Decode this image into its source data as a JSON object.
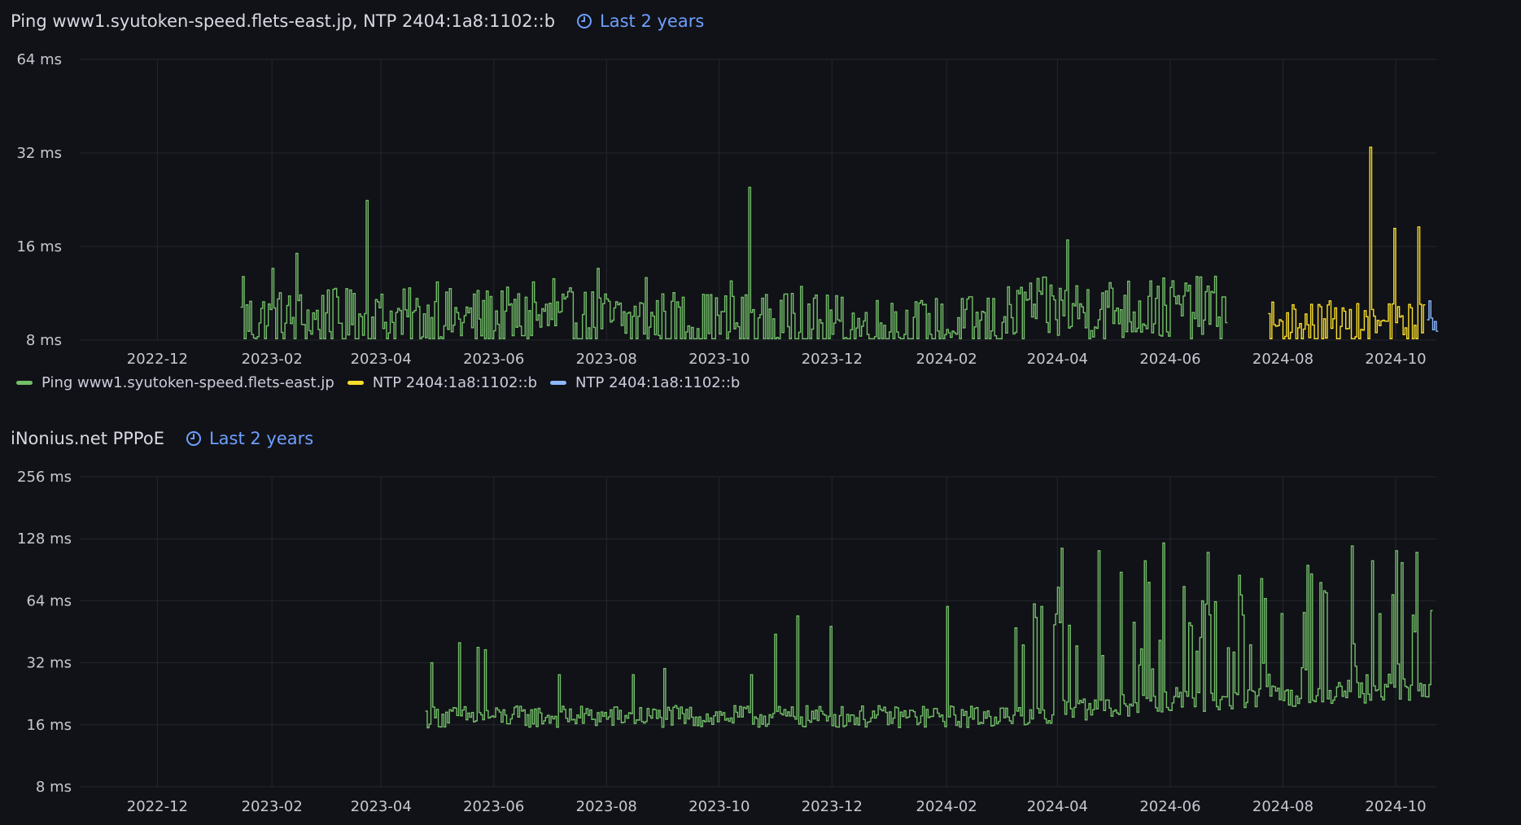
{
  "panels": [
    {
      "title": "Ping www1.syutoken-speed.flets-east.jp, NTP 2404:1a8:1102::b",
      "time_range": "Last 2 years"
    },
    {
      "title": "iNonius.net PPPoE",
      "time_range": "Last 2 years"
    }
  ],
  "icons": {
    "time_range": "clock-icon"
  },
  "colors": {
    "ping": "#73bf69",
    "ntp_yellow": "#fade2a",
    "ntp_blue": "#8ab8ff",
    "grid": "#24262e",
    "background": "#111217"
  },
  "chart_data": [
    {
      "type": "line",
      "x_range": [
        "2022-10-20",
        "2024-10-23"
      ],
      "x_ticks": [
        "2022-12",
        "2023-02",
        "2023-04",
        "2023-06",
        "2023-08",
        "2023-10",
        "2023-12",
        "2024-02",
        "2024-04",
        "2024-06",
        "2024-08",
        "2024-10"
      ],
      "y_scale": "log2",
      "y_range": [
        8,
        64
      ],
      "y_ticks": [
        8,
        16,
        32,
        64
      ],
      "y_tick_labels": [
        "8 ms",
        "16 ms",
        "32 ms",
        "64 ms"
      ],
      "grid": true,
      "legend_placement": "bottom-left",
      "series": [
        {
          "name": "Ping www1.syutoken-speed.flets-east.jp",
          "color": "#73bf69",
          "start": "2023-01-15",
          "end": "2024-07-01",
          "base": [
            [
              0,
              9.2
            ],
            [
              0.3,
              9.3
            ],
            [
              0.5,
              9.0
            ],
            [
              0.6,
              8.8
            ],
            [
              0.7,
              8.6
            ],
            [
              0.76,
              8.9
            ],
            [
              0.8,
              10.0
            ],
            [
              1.0,
              10.1
            ]
          ],
          "noise": 0.35,
          "spikes": [
            [
              "2023-01-16",
              12.8
            ],
            [
              "2023-02-01",
              13.6
            ],
            [
              "2023-02-14",
              15.2
            ],
            [
              "2023-03-03",
              11.6
            ],
            [
              "2023-03-17",
              11.3
            ],
            [
              "2023-03-24",
              22.5
            ],
            [
              "2023-03-29",
              10.8
            ],
            [
              "2023-05-01",
              12.3
            ],
            [
              "2023-06-22",
              12.3
            ],
            [
              "2023-07-03",
              12.6
            ],
            [
              "2023-07-27",
              13.6
            ],
            [
              "2023-08-22",
              12.7
            ],
            [
              "2023-10-07",
              12.4
            ],
            [
              "2023-10-17",
              24.8
            ],
            [
              "2023-11-09",
              11.3
            ],
            [
              "2023-11-14",
              11.9
            ],
            [
              "2024-01-02",
              10.5
            ],
            [
              "2024-03-17",
              12.2
            ],
            [
              "2024-04-06",
              16.8
            ],
            [
              "2024-05-21",
              12.4
            ]
          ]
        },
        {
          "name": "NTP 2404:1a8:1102::b",
          "color": "#fade2a",
          "start": "2024-07-24",
          "end": "2024-10-16",
          "base": [
            [
              0,
              9.0
            ],
            [
              0.5,
              8.8
            ],
            [
              1.0,
              9.0
            ]
          ],
          "noise": 0.25,
          "spikes": [
            [
              "2024-08-26",
              10.7
            ],
            [
              "2024-09-17",
              33.4
            ],
            [
              "2024-09-30",
              18.3
            ],
            [
              "2024-10-13",
              18.5
            ]
          ]
        },
        {
          "name": "NTP 2404:1a8:1102::b",
          "color": "#8ab8ff",
          "start": "2024-10-18",
          "end": "2024-10-23",
          "base": [
            [
              0,
              9.0
            ],
            [
              1.0,
              9.0
            ]
          ],
          "noise": 0.1,
          "spikes": [
            [
              "2024-10-19",
              10.7
            ]
          ]
        }
      ]
    },
    {
      "type": "line",
      "x_range": [
        "2022-10-20",
        "2024-10-23"
      ],
      "x_ticks": [
        "2022-12",
        "2023-02",
        "2023-04",
        "2023-06",
        "2023-08",
        "2023-10",
        "2023-12",
        "2024-02",
        "2024-04",
        "2024-06",
        "2024-08",
        "2024-10"
      ],
      "y_scale": "log2",
      "y_range": [
        8,
        256
      ],
      "y_ticks": [
        8,
        16,
        32,
        64,
        128,
        256
      ],
      "y_tick_labels": [
        "8 ms",
        "16 ms",
        "32 ms",
        "64 ms",
        "128 ms",
        "256 ms"
      ],
      "grid": true,
      "series": [
        {
          "color": "#73bf69",
          "start": "2023-04-25",
          "end": "2024-10-20",
          "base": [
            [
              0,
              17.5
            ],
            [
              0.55,
              17.5
            ],
            [
              0.6,
              18.0
            ],
            [
              0.7,
              20.0
            ],
            [
              1.0,
              24.0
            ]
          ],
          "noise": 0.18,
          "spikes": [
            [
              "2023-04-28",
              32
            ],
            [
              "2023-05-13",
              40
            ],
            [
              "2023-05-23",
              38
            ],
            [
              "2023-05-27",
              37
            ],
            [
              "2023-07-06",
              28
            ],
            [
              "2023-08-15",
              28
            ],
            [
              "2023-09-01",
              30
            ],
            [
              "2023-10-18",
              28
            ],
            [
              "2023-10-31",
              44
            ],
            [
              "2023-11-12",
              54
            ],
            [
              "2023-11-30",
              48
            ],
            [
              "2024-02-01",
              60
            ],
            [
              "2024-03-23",
              60
            ],
            [
              "2024-04-03",
              115
            ],
            [
              "2024-04-23",
              112
            ],
            [
              "2024-05-05",
              88
            ],
            [
              "2024-05-18",
              100
            ],
            [
              "2024-05-28",
              122
            ],
            [
              "2024-06-08",
              75
            ],
            [
              "2024-06-21",
              110
            ],
            [
              "2024-07-08",
              85
            ],
            [
              "2024-07-20",
              82
            ],
            [
              "2024-08-14",
              95
            ],
            [
              "2024-09-07",
              118
            ],
            [
              "2024-09-18",
              100
            ],
            [
              "2024-10-01",
              112
            ],
            [
              "2024-10-12",
              110
            ]
          ],
          "volatility": [
            [
              0,
              0.25
            ],
            [
              0.55,
              0.3
            ],
            [
              0.6,
              0.9
            ],
            [
              0.7,
              1.0
            ],
            [
              1.0,
              1.0
            ]
          ]
        }
      ]
    }
  ]
}
